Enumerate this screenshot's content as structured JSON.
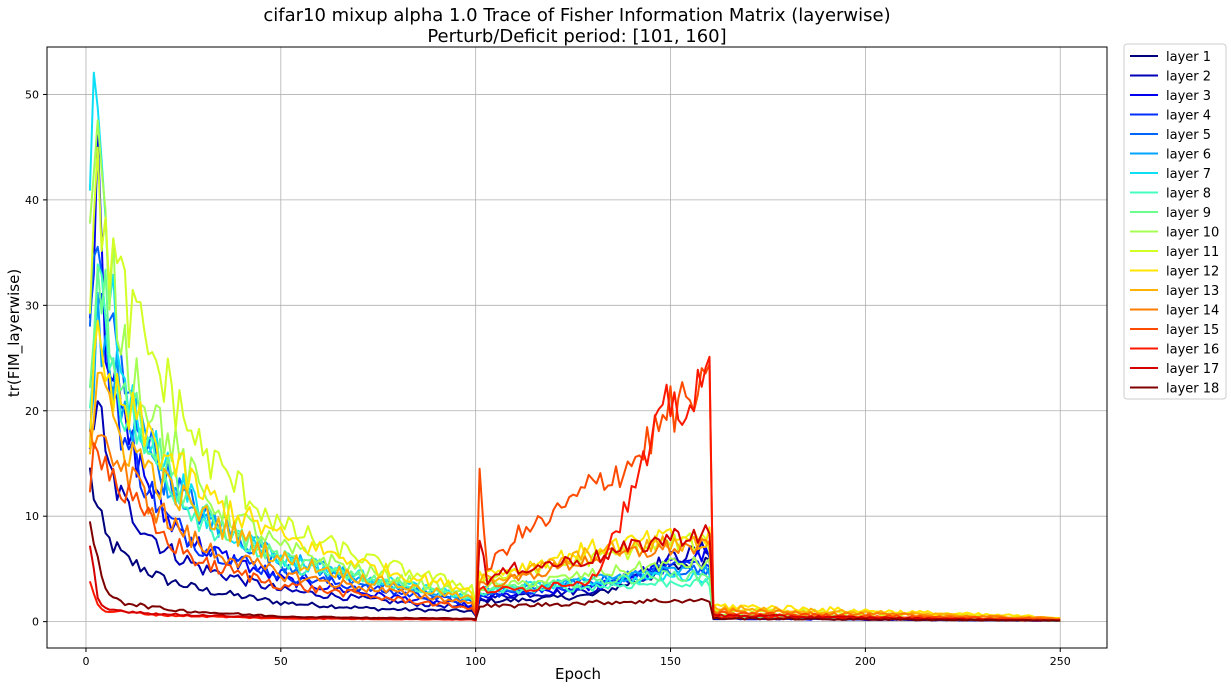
{
  "chart_data": {
    "type": "line",
    "title": "cifar10 mixup alpha 1.0 Trace of Fisher Information Matrix (layerwise)",
    "subtitle": "Perturb/Deficit period: [101, 160]",
    "xlabel": "Epoch",
    "ylabel": "tr(FIM_layerwise)",
    "xlim": [
      -10,
      262
    ],
    "ylim": [
      -2.5,
      54.5
    ],
    "xticks": [
      0,
      50,
      100,
      150,
      200,
      250
    ],
    "yticks": [
      0,
      10,
      20,
      30,
      40,
      50
    ],
    "grid": true,
    "legend_position": "outside-top-right",
    "x_range": [
      1,
      250
    ],
    "series": [
      {
        "name": "layer 1",
        "color": "#00007f",
        "keypoints": [
          [
            1,
            14
          ],
          [
            3,
            10.5
          ],
          [
            5,
            8
          ],
          [
            10,
            6
          ],
          [
            20,
            4
          ],
          [
            30,
            3
          ],
          [
            50,
            1.8
          ],
          [
            75,
            1.2
          ],
          [
            99,
            1.0
          ],
          [
            100,
            0.5
          ],
          [
            101,
            2.0
          ],
          [
            110,
            2.0
          ],
          [
            130,
            2.5
          ],
          [
            150,
            5
          ],
          [
            160,
            6
          ],
          [
            161,
            0.3
          ],
          [
            250,
            0.1
          ]
        ]
      },
      {
        "name": "layer 2",
        "color": "#0000b4",
        "keypoints": [
          [
            1,
            17
          ],
          [
            3,
            22
          ],
          [
            5,
            15
          ],
          [
            10,
            11
          ],
          [
            20,
            7
          ],
          [
            30,
            5
          ],
          [
            50,
            3
          ],
          [
            75,
            2
          ],
          [
            99,
            1.3
          ],
          [
            100,
            0.6
          ],
          [
            101,
            2.2
          ],
          [
            110,
            2.5
          ],
          [
            130,
            3
          ],
          [
            150,
            6
          ],
          [
            160,
            7
          ],
          [
            161,
            0.3
          ],
          [
            250,
            0.1
          ]
        ]
      },
      {
        "name": "layer 3",
        "color": "#0000ee",
        "keypoints": [
          [
            1,
            28
          ],
          [
            3,
            48
          ],
          [
            5,
            28
          ],
          [
            10,
            18
          ],
          [
            20,
            10
          ],
          [
            30,
            7
          ],
          [
            50,
            4
          ],
          [
            75,
            2.5
          ],
          [
            99,
            1.5
          ],
          [
            100,
            0.7
          ],
          [
            101,
            2.3
          ],
          [
            110,
            2.6
          ],
          [
            130,
            3.2
          ],
          [
            150,
            5.5
          ],
          [
            160,
            6.5
          ],
          [
            161,
            0.3
          ],
          [
            250,
            0.1
          ]
        ]
      },
      {
        "name": "layer 4",
        "color": "#0030ff",
        "keypoints": [
          [
            1,
            16
          ],
          [
            3,
            33
          ],
          [
            5,
            26
          ],
          [
            10,
            17
          ],
          [
            20,
            10
          ],
          [
            30,
            7
          ],
          [
            50,
            4.5
          ],
          [
            75,
            3
          ],
          [
            99,
            1.8
          ],
          [
            100,
            0.8
          ],
          [
            101,
            2.5
          ],
          [
            110,
            2.8
          ],
          [
            130,
            3.5
          ],
          [
            150,
            5
          ],
          [
            160,
            5.5
          ],
          [
            161,
            0.4
          ],
          [
            250,
            0.1
          ]
        ]
      },
      {
        "name": "layer 5",
        "color": "#0064ff",
        "keypoints": [
          [
            1,
            29
          ],
          [
            3,
            35
          ],
          [
            5,
            30
          ],
          [
            10,
            22
          ],
          [
            20,
            14
          ],
          [
            30,
            10
          ],
          [
            50,
            5.5
          ],
          [
            75,
            3.5
          ],
          [
            99,
            2
          ],
          [
            100,
            1
          ],
          [
            101,
            2.7
          ],
          [
            110,
            3
          ],
          [
            130,
            3.8
          ],
          [
            150,
            5
          ],
          [
            160,
            5
          ],
          [
            161,
            0.4
          ],
          [
            250,
            0.1
          ]
        ]
      },
      {
        "name": "layer 6",
        "color": "#00a4ff",
        "keypoints": [
          [
            1,
            20
          ],
          [
            3,
            30
          ],
          [
            5,
            26
          ],
          [
            10,
            21
          ],
          [
            20,
            14
          ],
          [
            30,
            10
          ],
          [
            50,
            6
          ],
          [
            75,
            3.8
          ],
          [
            99,
            2.2
          ],
          [
            100,
            1
          ],
          [
            101,
            3
          ],
          [
            110,
            3.3
          ],
          [
            130,
            4
          ],
          [
            150,
            4.8
          ],
          [
            160,
            4.8
          ],
          [
            161,
            0.5
          ],
          [
            250,
            0.1
          ]
        ]
      },
      {
        "name": "layer 7",
        "color": "#0de0f6",
        "keypoints": [
          [
            1,
            45
          ],
          [
            3,
            52
          ],
          [
            5,
            34
          ],
          [
            10,
            22
          ],
          [
            20,
            15
          ],
          [
            30,
            10
          ],
          [
            50,
            6
          ],
          [
            75,
            4
          ],
          [
            99,
            2.3
          ],
          [
            100,
            1.1
          ],
          [
            101,
            3
          ],
          [
            110,
            3.3
          ],
          [
            130,
            3.8
          ],
          [
            150,
            4.3
          ],
          [
            160,
            4.2
          ],
          [
            161,
            0.5
          ],
          [
            250,
            0.1
          ]
        ]
      },
      {
        "name": "layer 8",
        "color": "#42ffbd",
        "keypoints": [
          [
            1,
            21
          ],
          [
            3,
            34
          ],
          [
            5,
            28
          ],
          [
            10,
            20
          ],
          [
            20,
            14
          ],
          [
            30,
            9.5
          ],
          [
            50,
            5.5
          ],
          [
            75,
            3.8
          ],
          [
            99,
            2.2
          ],
          [
            100,
            1
          ],
          [
            101,
            2.8
          ],
          [
            110,
            3
          ],
          [
            130,
            3.3
          ],
          [
            150,
            3.7
          ],
          [
            160,
            3.6
          ],
          [
            161,
            0.5
          ],
          [
            250,
            0.1
          ]
        ]
      },
      {
        "name": "layer 9",
        "color": "#6aff8d",
        "keypoints": [
          [
            1,
            22
          ],
          [
            3,
            36
          ],
          [
            5,
            30
          ],
          [
            10,
            22
          ],
          [
            20,
            15
          ],
          [
            30,
            10
          ],
          [
            50,
            6
          ],
          [
            75,
            4
          ],
          [
            99,
            2.4
          ],
          [
            100,
            1.1
          ],
          [
            101,
            3
          ],
          [
            110,
            3.3
          ],
          [
            130,
            3.8
          ],
          [
            150,
            4.4
          ],
          [
            160,
            4.3
          ],
          [
            161,
            0.6
          ],
          [
            250,
            0.1
          ]
        ]
      },
      {
        "name": "layer 10",
        "color": "#a4ff53",
        "keypoints": [
          [
            1,
            35
          ],
          [
            3,
            44
          ],
          [
            5,
            36
          ],
          [
            10,
            26
          ],
          [
            20,
            18
          ],
          [
            30,
            12
          ],
          [
            50,
            7
          ],
          [
            75,
            4.5
          ],
          [
            99,
            2.6
          ],
          [
            100,
            1.2
          ],
          [
            101,
            3.3
          ],
          [
            110,
            3.5
          ],
          [
            130,
            4.5
          ],
          [
            150,
            5.5
          ],
          [
            160,
            5.5
          ],
          [
            161,
            0.7
          ],
          [
            250,
            0.1
          ]
        ]
      },
      {
        "name": "layer 11",
        "color": "#d1ff26",
        "keypoints": [
          [
            1,
            33
          ],
          [
            3,
            40
          ],
          [
            5,
            37
          ],
          [
            10,
            30
          ],
          [
            20,
            23
          ],
          [
            30,
            16
          ],
          [
            50,
            9
          ],
          [
            75,
            5.5
          ],
          [
            99,
            3.3
          ],
          [
            100,
            1.5
          ],
          [
            101,
            4
          ],
          [
            110,
            4.5
          ],
          [
            130,
            6
          ],
          [
            150,
            7.5
          ],
          [
            160,
            7.5
          ],
          [
            161,
            1.2
          ],
          [
            250,
            0.3
          ]
        ]
      },
      {
        "name": "layer 12",
        "color": "#ffe500",
        "keypoints": [
          [
            1,
            18
          ],
          [
            3,
            26
          ],
          [
            5,
            22
          ],
          [
            10,
            20
          ],
          [
            20,
            16
          ],
          [
            30,
            12
          ],
          [
            50,
            8
          ],
          [
            75,
            5
          ],
          [
            99,
            3
          ],
          [
            100,
            1.5
          ],
          [
            101,
            4.5
          ],
          [
            110,
            5
          ],
          [
            130,
            7
          ],
          [
            150,
            8
          ],
          [
            160,
            8
          ],
          [
            161,
            1.5
          ],
          [
            250,
            0.4
          ]
        ]
      },
      {
        "name": "layer 13",
        "color": "#ffb200",
        "keypoints": [
          [
            1,
            16
          ],
          [
            3,
            25
          ],
          [
            5,
            20
          ],
          [
            10,
            17
          ],
          [
            20,
            13
          ],
          [
            30,
            10
          ],
          [
            50,
            6
          ],
          [
            75,
            3.8
          ],
          [
            99,
            2.2
          ],
          [
            100,
            1.1
          ],
          [
            101,
            4
          ],
          [
            110,
            4.5
          ],
          [
            130,
            6.5
          ],
          [
            150,
            7.5
          ],
          [
            160,
            7.5
          ],
          [
            161,
            1.3
          ],
          [
            250,
            0.3
          ]
        ]
      },
      {
        "name": "layer 14",
        "color": "#ff7d00",
        "keypoints": [
          [
            1,
            16
          ],
          [
            3,
            20
          ],
          [
            5,
            17
          ],
          [
            10,
            14
          ],
          [
            20,
            10
          ],
          [
            30,
            7
          ],
          [
            50,
            4.5
          ],
          [
            75,
            3
          ],
          [
            99,
            1.8
          ],
          [
            100,
            0.9
          ],
          [
            101,
            3.5
          ],
          [
            110,
            4
          ],
          [
            130,
            6
          ],
          [
            150,
            7
          ],
          [
            160,
            7
          ],
          [
            161,
            1
          ],
          [
            250,
            0.3
          ]
        ]
      },
      {
        "name": "layer 15",
        "color": "#ff4b00",
        "keypoints": [
          [
            1,
            14
          ],
          [
            3,
            18
          ],
          [
            5,
            15
          ],
          [
            10,
            12
          ],
          [
            20,
            8
          ],
          [
            30,
            5.5
          ],
          [
            50,
            3.5
          ],
          [
            75,
            2.3
          ],
          [
            99,
            1.3
          ],
          [
            100,
            0.7
          ],
          [
            101,
            13
          ],
          [
            103,
            5
          ],
          [
            110,
            8
          ],
          [
            120,
            10
          ],
          [
            130,
            13
          ],
          [
            140,
            15
          ],
          [
            150,
            20
          ],
          [
            160,
            22
          ],
          [
            161,
            0.8
          ],
          [
            250,
            0.2
          ]
        ]
      },
      {
        "name": "layer 16",
        "color": "#ff1800",
        "keypoints": [
          [
            1,
            4
          ],
          [
            3,
            1.5
          ],
          [
            5,
            1
          ],
          [
            10,
            0.9
          ],
          [
            20,
            0.6
          ],
          [
            50,
            0.3
          ],
          [
            99,
            0.2
          ],
          [
            100,
            0.1
          ],
          [
            101,
            3
          ],
          [
            110,
            3
          ],
          [
            130,
            4
          ],
          [
            140,
            12
          ],
          [
            150,
            21
          ],
          [
            155,
            20
          ],
          [
            160,
            23.5
          ],
          [
            161,
            0.5
          ],
          [
            250,
            0.1
          ]
        ]
      },
      {
        "name": "layer 17",
        "color": "#d40000",
        "keypoints": [
          [
            1,
            7
          ],
          [
            3,
            2
          ],
          [
            5,
            1.2
          ],
          [
            10,
            1
          ],
          [
            20,
            0.7
          ],
          [
            50,
            0.4
          ],
          [
            99,
            0.25
          ],
          [
            100,
            0.15
          ],
          [
            101,
            8
          ],
          [
            103,
            4
          ],
          [
            110,
            5
          ],
          [
            130,
            6
          ],
          [
            150,
            8
          ],
          [
            160,
            8.5
          ],
          [
            161,
            0.6
          ],
          [
            250,
            0.1
          ]
        ]
      },
      {
        "name": "layer 18",
        "color": "#7f0000",
        "keypoints": [
          [
            1,
            10
          ],
          [
            3,
            5.5
          ],
          [
            5,
            3
          ],
          [
            10,
            1.8
          ],
          [
            20,
            1.2
          ],
          [
            30,
            0.9
          ],
          [
            50,
            0.5
          ],
          [
            75,
            0.35
          ],
          [
            99,
            0.3
          ],
          [
            100,
            0.2
          ],
          [
            101,
            1.5
          ],
          [
            110,
            1.5
          ],
          [
            130,
            1.8
          ],
          [
            150,
            2
          ],
          [
            160,
            2
          ],
          [
            161,
            0.3
          ],
          [
            250,
            0.1
          ]
        ]
      }
    ]
  }
}
